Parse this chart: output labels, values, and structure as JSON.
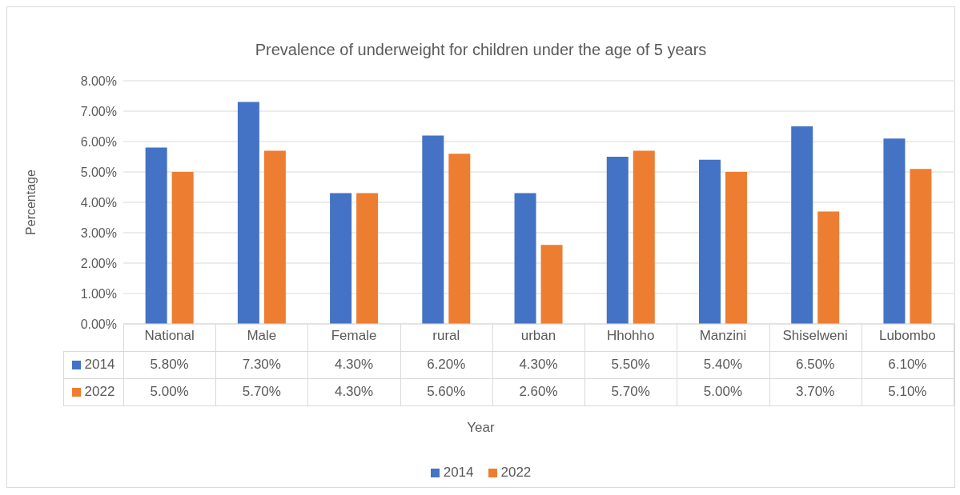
{
  "chart_data": {
    "type": "bar",
    "title": "Prevalence of underweight for children under the age of 5 years",
    "annotations": [
      "Year"
    ],
    "ylabel": "Percentage",
    "categories": [
      "National",
      "Male",
      "Female",
      "rural",
      "urban",
      "Hhohho",
      "Manzini",
      "Shiselweni",
      "Lubombo"
    ],
    "series": [
      {
        "name": "2014",
        "color": "#4472c4",
        "values": [
          5.8,
          7.3,
          4.3,
          6.2,
          4.3,
          5.5,
          5.4,
          6.5,
          6.1
        ],
        "value_labels": [
          "5.80%",
          "7.30%",
          "4.30%",
          "6.20%",
          "4.30%",
          "5.50%",
          "5.40%",
          "6.50%",
          "6.10%"
        ]
      },
      {
        "name": "2022",
        "color": "#ed7d31",
        "values": [
          5.0,
          5.7,
          4.3,
          5.6,
          2.6,
          5.7,
          5.0,
          3.7,
          5.1
        ],
        "value_labels": [
          "5.00%",
          "5.70%",
          "4.30%",
          "5.60%",
          "2.60%",
          "5.70%",
          "5.00%",
          "3.70%",
          "5.10%"
        ]
      }
    ],
    "ylim": [
      0,
      8
    ],
    "yticks": [
      {
        "value": 0,
        "label": "0.00%"
      },
      {
        "value": 1,
        "label": "1.00%"
      },
      {
        "value": 2,
        "label": "2.00%"
      },
      {
        "value": 3,
        "label": "3.00%"
      },
      {
        "value": 4,
        "label": "4.00%"
      },
      {
        "value": 5,
        "label": "5.00%"
      },
      {
        "value": 6,
        "label": "6.00%"
      },
      {
        "value": 7,
        "label": "7.00%"
      },
      {
        "value": 8,
        "label": "8.00%"
      }
    ],
    "grid": "y",
    "legend": "bottom"
  }
}
